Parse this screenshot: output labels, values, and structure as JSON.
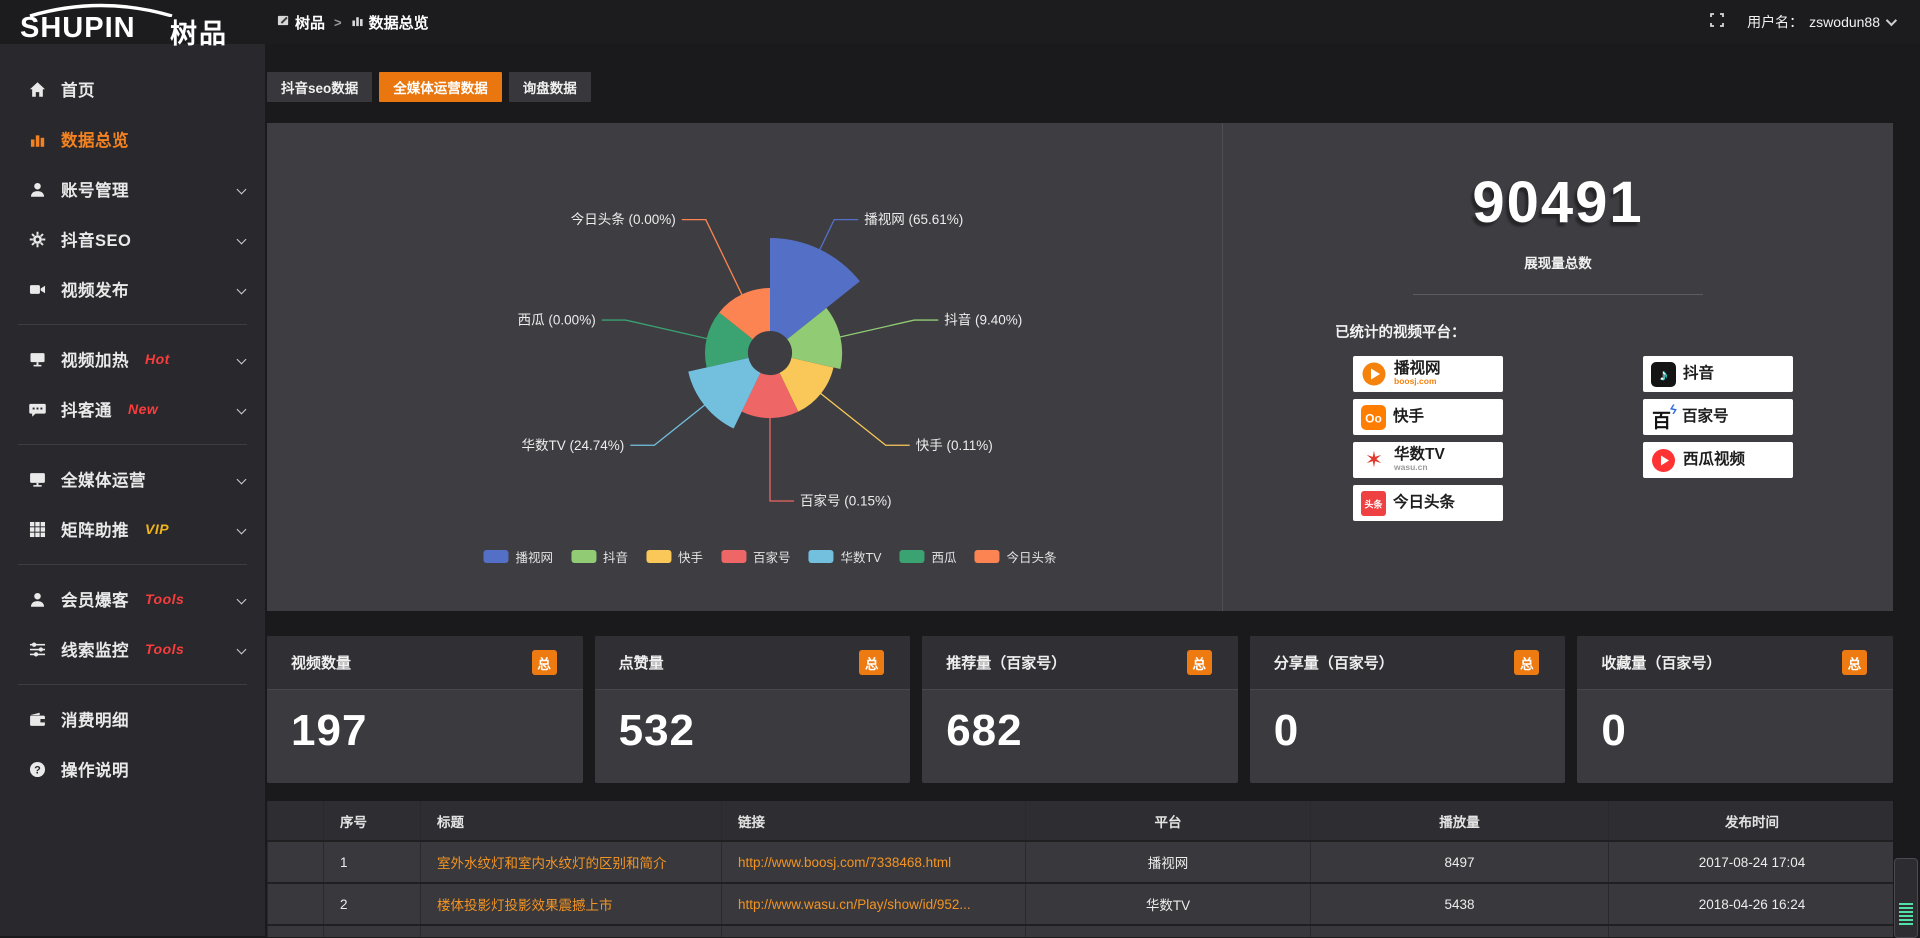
{
  "brand": {
    "logo_text": "SHUPIN",
    "logo_cn": "树品"
  },
  "topbar": {
    "breadcrumb_root": "树品",
    "breadcrumb_separator": ">",
    "breadcrumb_current": "数据总览",
    "username_label": "用户名：",
    "username": "zswodun88"
  },
  "sidebar": {
    "items": [
      {
        "label": "首页",
        "icon": "home"
      },
      {
        "label": "数据总览",
        "icon": "chart-bars",
        "active": true
      },
      {
        "label": "账号管理",
        "icon": "user",
        "expandable": true
      },
      {
        "label": "抖音SEO",
        "icon": "gear",
        "expandable": true
      },
      {
        "label": "视频发布",
        "icon": "video",
        "expandable": true
      },
      {
        "divider": true
      },
      {
        "label": "视频加热",
        "icon": "monitor",
        "badge": "Hot",
        "badge_color": "#fa3c3c",
        "expandable": true
      },
      {
        "label": "抖客通",
        "icon": "chat",
        "badge": "New",
        "badge_color": "#fa3c3c",
        "expandable": true
      },
      {
        "divider": true
      },
      {
        "label": "全媒体运营",
        "icon": "screen",
        "expandable": true
      },
      {
        "label": "矩阵助推",
        "icon": "grid",
        "badge": "VIP",
        "badge_color": "#f0b41e",
        "expandable": true
      },
      {
        "divider": true
      },
      {
        "label": "会员爆客",
        "icon": "user",
        "badge": "Tools",
        "badge_color": "#fa3c3c",
        "expandable": true
      },
      {
        "label": "线索监控",
        "icon": "sliders",
        "badge": "Tools",
        "badge_color": "#fa3c3c",
        "expandable": true
      },
      {
        "divider": true
      },
      {
        "label": "消费明细",
        "icon": "wallet"
      },
      {
        "label": "操作说明",
        "icon": "question"
      }
    ]
  },
  "tabs": [
    {
      "label": "抖音seo数据",
      "active": false
    },
    {
      "label": "全媒体运营数据",
      "active": true
    },
    {
      "label": "询盘数据",
      "active": false
    }
  ],
  "chart_data": {
    "type": "pie",
    "variant": "nightingale-rose",
    "unit": "%",
    "label_format": "{name} ({pct}%)",
    "legend_position": "bottom",
    "items": [
      {
        "name": "播视网",
        "pct": "65.61",
        "color": "#5470c6"
      },
      {
        "name": "抖音",
        "pct": "9.40",
        "color": "#91cc75"
      },
      {
        "name": "快手",
        "pct": "0.11",
        "color": "#fac858"
      },
      {
        "name": "百家号",
        "pct": "0.15",
        "color": "#ee6666"
      },
      {
        "name": "华数TV",
        "pct": "24.74",
        "color": "#73c0de"
      },
      {
        "name": "西瓜",
        "pct": "0.00",
        "color": "#3ba272"
      },
      {
        "name": "今日头条",
        "pct": "0.00",
        "color": "#fc8452"
      }
    ]
  },
  "overview": {
    "total_value": "90491",
    "total_label": "展现量总数",
    "platforms_label": "已统计的视频平台：",
    "platforms_left": [
      {
        "name": "播视网",
        "sub": "boosj.com",
        "icon": "boosj"
      },
      {
        "name": "快手",
        "icon": "kuaishou"
      },
      {
        "name": "华数TV",
        "sub": "wasu.cn",
        "icon": "wasu"
      },
      {
        "name": "今日头条",
        "icon": "toutiao"
      }
    ],
    "platforms_right": [
      {
        "name": "抖音",
        "icon": "douyin"
      },
      {
        "name": "百家号",
        "icon": "baijiahao"
      },
      {
        "name": "西瓜视频",
        "icon": "xigua"
      }
    ]
  },
  "stat_cards": [
    {
      "title": "视频数量",
      "badge": "总",
      "value": "197"
    },
    {
      "title": "点赞量",
      "badge": "总",
      "value": "532"
    },
    {
      "title": "推荐量（百家号）",
      "badge": "总",
      "value": "682"
    },
    {
      "title": "分享量（百家号）",
      "badge": "总",
      "value": "0"
    },
    {
      "title": "收藏量（百家号）",
      "badge": "总",
      "value": "0"
    }
  ],
  "table": {
    "headers": [
      "序号",
      "标题",
      "链接",
      "平台",
      "播放量",
      "发布时间"
    ],
    "rows": [
      {
        "index": "1",
        "title": "室外水纹灯和室内水纹灯的区别和简介",
        "link": "http://www.boosj.com/7338468.html",
        "platform": "播视网",
        "plays": "8497",
        "time": "2017-08-24 17:04"
      },
      {
        "index": "2",
        "title": "楼体投影灯投影效果震撼上市",
        "link": "http://www.wasu.cn/Play/show/id/952...",
        "platform": "华数TV",
        "plays": "5438",
        "time": "2018-04-26 16:24"
      }
    ],
    "partial_row": true
  },
  "colors": {
    "accent": "#ee7a12",
    "link": "#f39422",
    "panel": "#3d3d42"
  }
}
